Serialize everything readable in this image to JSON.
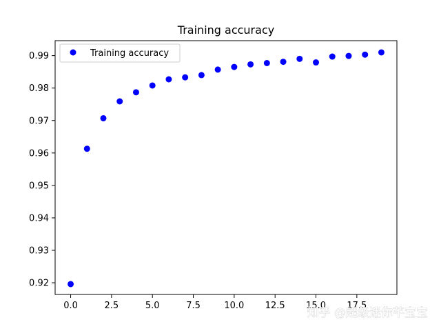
{
  "chart_data": {
    "type": "scatter",
    "title": "Training accuracy",
    "xlabel": "",
    "ylabel": "",
    "xlim": [
      -0.95,
      19.95
    ],
    "ylim": [
      0.9164,
      0.9946
    ],
    "xticks": [
      0.0,
      2.5,
      5.0,
      7.5,
      10.0,
      12.5,
      15.0,
      17.5
    ],
    "xtick_labels": [
      "0.0",
      "2.5",
      "5.0",
      "7.5",
      "10.0",
      "12.5",
      "15.0",
      "17.5"
    ],
    "yticks": [
      0.92,
      0.93,
      0.94,
      0.95,
      0.96,
      0.97,
      0.98,
      0.99
    ],
    "ytick_labels": [
      "0.92",
      "0.93",
      "0.94",
      "0.95",
      "0.96",
      "0.97",
      "0.98",
      "0.99"
    ],
    "grid": false,
    "legend_position": "upper-left",
    "series": [
      {
        "name": "Training accuracy",
        "color": "#0000ff",
        "marker": "circle",
        "x": [
          0,
          1,
          2,
          3,
          4,
          5,
          6,
          7,
          8,
          9,
          10,
          11,
          12,
          13,
          14,
          15,
          16,
          17,
          18,
          19
        ],
        "values": [
          0.9196,
          0.9613,
          0.9707,
          0.9759,
          0.9787,
          0.9808,
          0.9827,
          0.9833,
          0.984,
          0.9857,
          0.9865,
          0.9873,
          0.9877,
          0.9881,
          0.989,
          0.9879,
          0.9897,
          0.9899,
          0.9903,
          0.991
        ]
      }
    ]
  },
  "watermark": "知乎 @超级迷你芊宝宝"
}
